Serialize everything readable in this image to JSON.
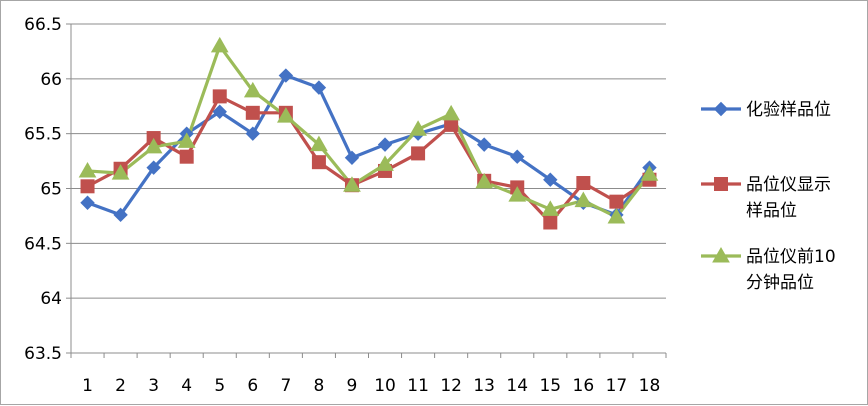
{
  "chart_data": {
    "type": "line",
    "title": "",
    "xlabel": "",
    "ylabel": "",
    "categories": [
      "1",
      "2",
      "3",
      "4",
      "5",
      "6",
      "7",
      "8",
      "9",
      "10",
      "11",
      "12",
      "13",
      "14",
      "15",
      "16",
      "17",
      "18"
    ],
    "ylim": [
      63.5,
      66.5
    ],
    "yticks": [
      "63.5",
      "64",
      "64.5",
      "65",
      "65.5",
      "66",
      "66.5"
    ],
    "grid": "horizontal",
    "legend_position": "right",
    "series": [
      {
        "name": "化验样品位",
        "marker": "diamond",
        "color": "#4472c4",
        "values": [
          64.87,
          64.76,
          65.19,
          65.5,
          65.7,
          65.5,
          66.03,
          65.92,
          65.28,
          65.4,
          65.5,
          65.59,
          65.4,
          65.29,
          65.08,
          64.87,
          64.76,
          65.19
        ]
      },
      {
        "name": "品位仪显示样品位",
        "name_lines": [
          "品位仪显示",
          "样品位"
        ],
        "marker": "square",
        "color": "#c0504d",
        "values": [
          65.02,
          65.18,
          65.46,
          65.29,
          65.84,
          65.69,
          65.69,
          65.24,
          65.03,
          65.16,
          65.32,
          65.58,
          65.07,
          65.01,
          64.69,
          65.05,
          64.88,
          65.08
        ]
      },
      {
        "name": "品位仪前10分钟品位",
        "name_lines": [
          "品位仪前10",
          "分钟品位"
        ],
        "marker": "triangle",
        "color": "#9bbb59",
        "values": [
          65.16,
          65.14,
          65.38,
          65.43,
          66.3,
          65.89,
          65.66,
          65.4,
          65.03,
          65.22,
          65.54,
          65.68,
          65.06,
          64.94,
          64.81,
          64.89,
          64.74,
          65.13
        ]
      }
    ]
  }
}
